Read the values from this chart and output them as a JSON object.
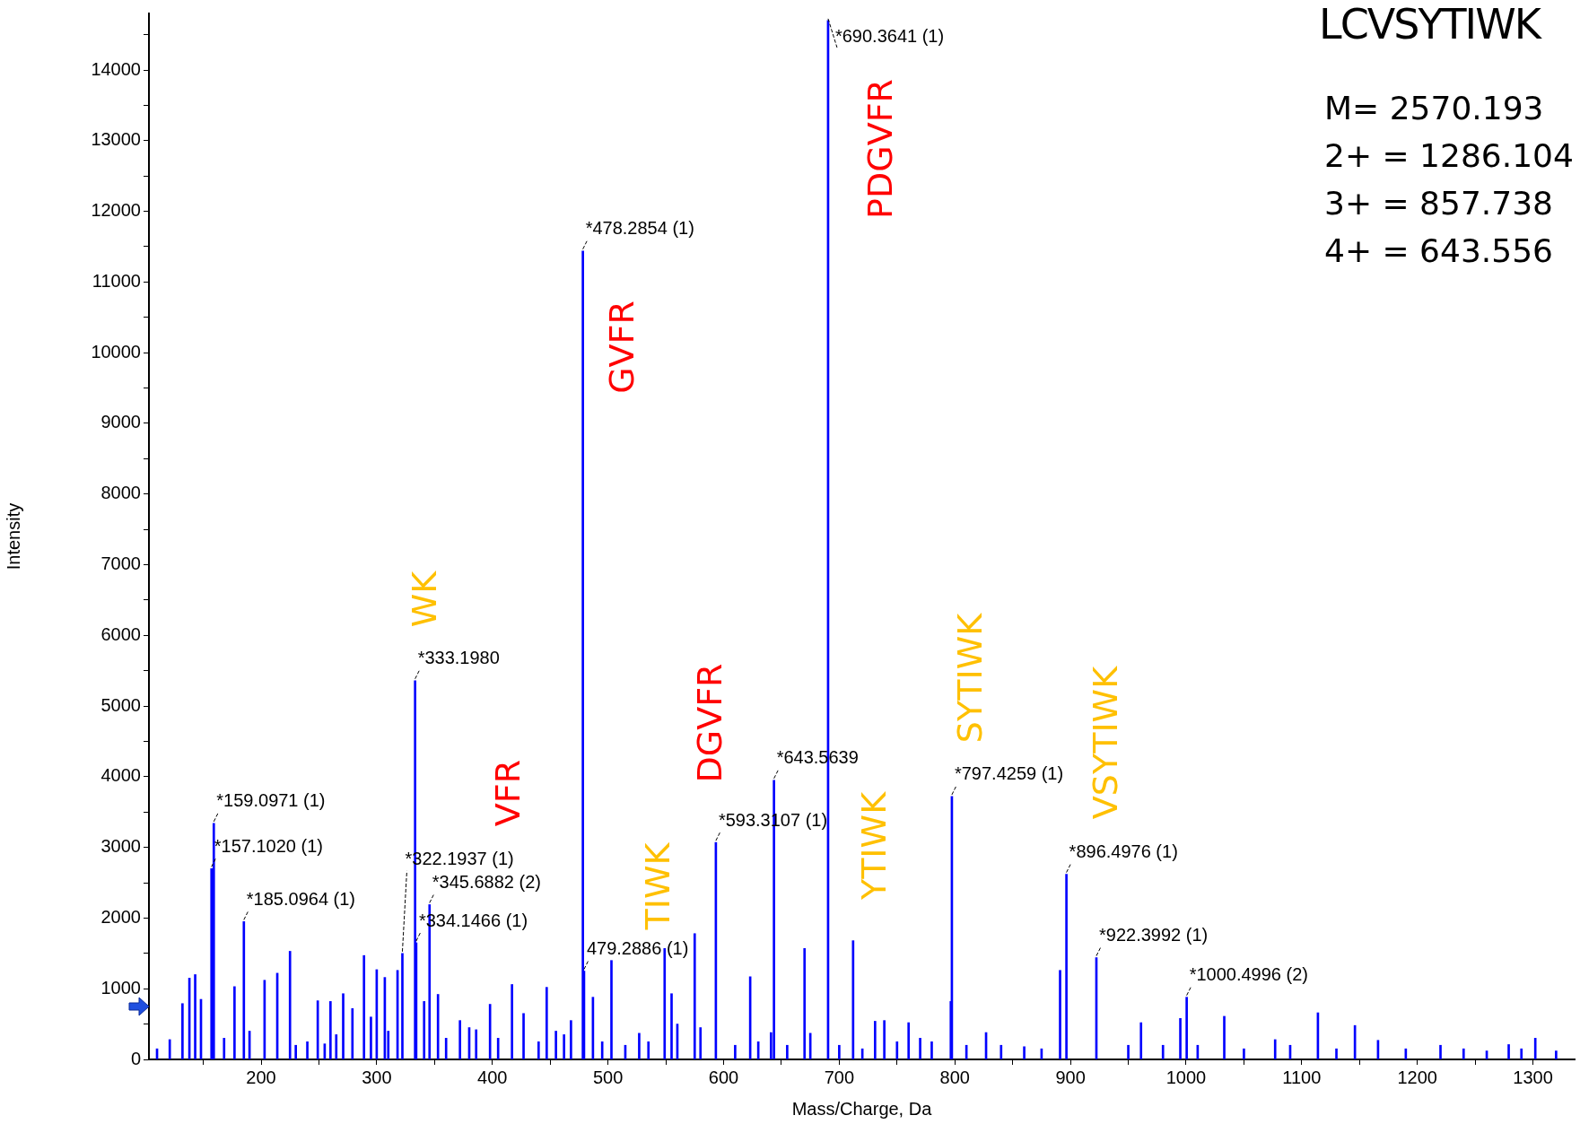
{
  "chart_data": {
    "type": "bar",
    "xlabel": "Mass/Charge, Da",
    "ylabel": "Intensity",
    "x": [
      110,
      121,
      132,
      138,
      143,
      148,
      157.102,
      159.0971,
      168,
      177,
      185.0964,
      190,
      203,
      214,
      225,
      230,
      240,
      249,
      255,
      260,
      265,
      271,
      279,
      289,
      295,
      300,
      307,
      310,
      318,
      322.1937,
      333.198,
      334.1466,
      341,
      345.6882,
      353,
      360,
      372,
      380,
      386,
      398,
      405,
      417,
      427,
      440,
      447,
      455,
      462,
      468,
      478.2854,
      479.2886,
      487,
      495,
      503,
      515,
      527,
      535,
      549,
      555,
      560,
      575,
      580,
      593.3107,
      610,
      623,
      630,
      641,
      643.5639,
      655,
      670,
      675,
      690.3641,
      700,
      712,
      720,
      731,
      739,
      750,
      760,
      770,
      780,
      796.5,
      797.4259,
      810,
      827,
      840,
      860,
      875,
      891,
      896.4976,
      922.3992,
      950,
      961,
      980,
      995,
      1000.4996,
      1010,
      1033,
      1050,
      1077,
      1090,
      1114,
      1130,
      1146,
      1166,
      1190,
      1220,
      1240,
      1260,
      1279,
      1290,
      1302,
      1320
    ],
    "series": [
      {
        "color": "#0000ff",
        "values": [
          150,
          280,
          790,
          1150,
          1200,
          850,
          2700,
          3340,
          300,
          1030,
          1950,
          400,
          1120,
          1220,
          1530,
          200,
          250,
          830,
          220,
          820,
          350,
          930,
          720,
          1470,
          600,
          1270,
          1160,
          400,
          1260,
          1500,
          5360,
          1650,
          820,
          2190,
          920,
          300,
          550,
          450,
          420,
          780,
          300,
          1060,
          650,
          250,
          1020,
          400,
          350,
          550,
          11440,
          1250,
          880,
          250,
          1400,
          200,
          370,
          250,
          1570,
          930,
          500,
          1780,
          450,
          3070,
          200,
          1170,
          250,
          380,
          3950,
          200,
          1570,
          370,
          14700,
          200,
          1680,
          150,
          540,
          550,
          250,
          520,
          300,
          250,
          820,
          3720,
          200,
          380,
          200,
          180,
          150,
          1260,
          2620,
          1440,
          200,
          520,
          200,
          580,
          880,
          200,
          610,
          150,
          280,
          200,
          660,
          150,
          480,
          270,
          150,
          200,
          150,
          120,
          210,
          150,
          300,
          120
        ]
      }
    ],
    "xlim": [
      103,
      1336
    ],
    "ylim": [
      0,
      14800
    ],
    "xticks": [
      {
        "value": 150,
        "label": null
      },
      200,
      {
        "value": 250,
        "label": null
      },
      300,
      {
        "value": 350,
        "label": null
      },
      400,
      {
        "value": 450,
        "label": null
      },
      500,
      {
        "value": 550,
        "label": null
      },
      600,
      {
        "value": 650,
        "label": null
      },
      700,
      {
        "value": 750,
        "label": null
      },
      800,
      {
        "value": 850,
        "label": null
      },
      900,
      {
        "value": 950,
        "label": null
      },
      1000,
      {
        "value": 1050,
        "label": null
      },
      1100,
      {
        "value": 1150,
        "label": null
      },
      1200,
      {
        "value": 1250,
        "label": null
      },
      1300
    ],
    "yticks": [
      0,
      {
        "value": 500,
        "label": null
      },
      1000,
      {
        "value": 1500,
        "label": null
      },
      2000,
      {
        "value": 2500,
        "label": null
      },
      3000,
      {
        "value": 3500,
        "label": null
      },
      4000,
      {
        "value": 4500,
        "label": null
      },
      5000,
      {
        "value": 5500,
        "label": null
      },
      6000,
      {
        "value": 6500,
        "label": null
      },
      7000,
      {
        "value": 7500,
        "label": null
      },
      8000,
      {
        "value": 8500,
        "label": null
      },
      9000,
      {
        "value": 9500,
        "label": null
      },
      10000,
      {
        "value": 10500,
        "label": null
      },
      11000,
      {
        "value": 11500,
        "label": null
      },
      12000,
      {
        "value": 12500,
        "label": null
      },
      13000,
      {
        "value": 13500,
        "label": null
      },
      14000,
      {
        "value": 14500,
        "label": null
      }
    ],
    "grid": false,
    "legend": false,
    "annotations": [
      {
        "text": "*690.3641 (1)",
        "x": 690.3641,
        "y": 14700
      },
      {
        "text": "*478.2854 (1)",
        "x": 478.2854,
        "y": 11440
      },
      {
        "text": "*333.1980",
        "x": 333.198,
        "y": 5360
      },
      {
        "text": "*643.5639",
        "x": 643.5639,
        "y": 3950
      },
      {
        "text": "*797.4259 (1)",
        "x": 797.4259,
        "y": 3720
      },
      {
        "text": "*159.0971 (1)",
        "x": 159.0971,
        "y": 3340
      },
      {
        "text": "*593.3107 (1)",
        "x": 593.3107,
        "y": 3070
      },
      {
        "text": "*157.1020 (1)",
        "x": 157.102,
        "y": 2700
      },
      {
        "text": "*896.4976 (1)",
        "x": 896.4976,
        "y": 2620
      },
      {
        "text": "*345.6882 (2)",
        "x": 345.6882,
        "y": 2190
      },
      {
        "text": "*185.0964 (1)",
        "x": 185.0964,
        "y": 1950
      },
      {
        "text": "*334.1466 (1)",
        "x": 334.1466,
        "y": 1650
      },
      {
        "text": "*322.1937 (1)",
        "x": 322.1937,
        "y": 1500
      },
      {
        "text": "*922.3992 (1)",
        "x": 922.3992,
        "y": 1440
      },
      {
        "text": "479.2886 (1)",
        "x": 479.2886,
        "y": 1250
      },
      {
        "text": "*1000.4996 (2)",
        "x": 1000.4996,
        "y": 880
      },
      "PDGVFR",
      "GVFR",
      "WK",
      "VFR",
      "DGVFR",
      "TIWK",
      "YTIWK",
      "SYTIWK",
      "VSYTIWK",
      "LCVSYTIWK",
      "M= 2570.193",
      "2+ = 1286.104",
      "3+ = 857.738",
      "4+ = 643.556"
    ]
  }
}
